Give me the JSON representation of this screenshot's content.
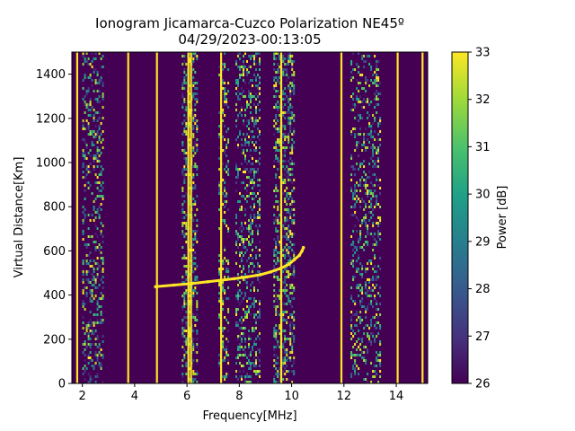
{
  "chart_data": {
    "type": "heatmap",
    "title": "Ionogram Jicamarca-Cuzco Polarization NE45º",
    "subtitle": "04/29/2023-00:13:05",
    "xlabel": "Frequency[MHz]",
    "ylabel": "Virtual Distance[Km]",
    "xlim": [
      1.6,
      15.2
    ],
    "ylim": [
      0,
      1500
    ],
    "xticks": [
      2,
      4,
      6,
      8,
      10,
      12,
      14
    ],
    "yticks": [
      0,
      200,
      400,
      600,
      800,
      1000,
      1200,
      1400
    ],
    "colorbar": {
      "label": "Power [dB]",
      "range": [
        26,
        33
      ],
      "ticks": [
        26,
        27,
        28,
        29,
        30,
        31,
        32,
        33
      ],
      "colormap": "viridis"
    },
    "interference_lines_mhz": [
      1.8,
      3.75,
      4.85,
      6.05,
      6.15,
      7.3,
      9.6,
      11.9,
      14.05,
      15.0
    ],
    "noise_bands_mhz": [
      {
        "center": 2.4,
        "width": 0.8,
        "intensity": 0.35
      },
      {
        "center": 6.1,
        "width": 0.6,
        "intensity": 0.45
      },
      {
        "center": 7.4,
        "width": 0.4,
        "intensity": 0.3
      },
      {
        "center": 8.3,
        "width": 0.9,
        "intensity": 0.35
      },
      {
        "center": 9.7,
        "width": 0.8,
        "intensity": 0.45
      },
      {
        "center": 12.8,
        "width": 1.1,
        "intensity": 0.3
      }
    ],
    "echo_trace": {
      "x": [
        4.8,
        5.5,
        6.2,
        6.8,
        7.3,
        7.8,
        8.3,
        8.8,
        9.2,
        9.6,
        9.9,
        10.1,
        10.3,
        10.4,
        10.45
      ],
      "y": [
        438,
        445,
        452,
        460,
        467,
        474,
        482,
        492,
        505,
        522,
        540,
        560,
        580,
        600,
        615
      ]
    },
    "background_color": "#440154",
    "highlight_color": "#fde725"
  }
}
